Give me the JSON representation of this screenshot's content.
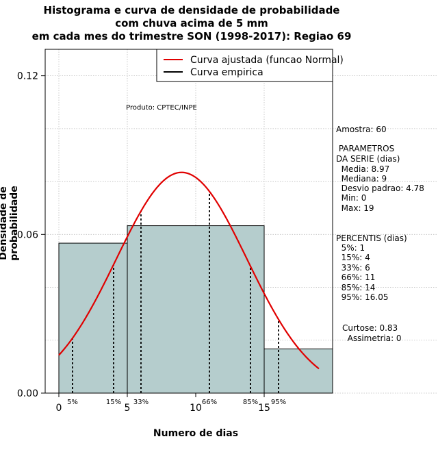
{
  "chart_data": {
    "type": "histogram",
    "title": [
      "Histograma e curva de densidade de probabilidade",
      "com chuva acima de 5 mm",
      "em cada mes do trimestre SON (1998-2017): Regiao 69"
    ],
    "xlabel": "Numero de dias",
    "ylabel": "Densidade de probabilidade",
    "xlim": [
      -1,
      20
    ],
    "ylim": [
      0,
      0.13
    ],
    "x_ticks": [
      0,
      5,
      10,
      15
    ],
    "y_ticks": [
      0.0,
      0.06,
      0.12
    ],
    "y_tick_labels": [
      "0.00",
      "0.06",
      "0.12"
    ],
    "bins": [
      {
        "x0": 0,
        "x1": 5,
        "density": 0.0567
      },
      {
        "x0": 5,
        "x1": 15,
        "density": 0.0633
      },
      {
        "x0": 15,
        "x1": 20,
        "density": 0.0167
      }
    ],
    "normal_fit": {
      "mean": 8.97,
      "sd": 4.78,
      "x_from": 0,
      "x_to": 19,
      "color": "#e00000"
    },
    "percentiles": [
      {
        "label": "5%",
        "x": 1
      },
      {
        "label": "15%",
        "x": 4
      },
      {
        "label": "33%",
        "x": 6
      },
      {
        "label": "66%",
        "x": 11
      },
      {
        "label": "85%",
        "x": 14
      },
      {
        "label": "95%",
        "x": 16.05
      }
    ],
    "legend": [
      {
        "label": "Curva ajustada (funcao Normal)",
        "color": "#e00000"
      },
      {
        "label": "Curva empirica",
        "color": "#000000"
      }
    ],
    "product_note": "Produto: CPTEC/INPE",
    "bar_color": "#b5cdcd"
  },
  "stats": {
    "amostra": "Amostra: 60",
    "parametros_title": " PARAMETROS",
    "serie_title": "DA SERIE (dias)",
    "media": "  Media: 8.97",
    "mediana": "  Mediana: 9",
    "desvio": "  Desvio padrao: 4.78",
    "min": "  Min: 0",
    "max": "  Max: 19",
    "percentis_title": "PERCENTIS (dias)",
    "p5": "  5%: 1",
    "p15": "  15%: 4",
    "p33": "  33%: 6",
    "p66": "  66%: 11",
    "p85": "  85%: 14",
    "p95": "  95%: 16.05",
    "curtose": "Curtose: 0.83",
    "assimetria": "  Assimetria: 0"
  }
}
